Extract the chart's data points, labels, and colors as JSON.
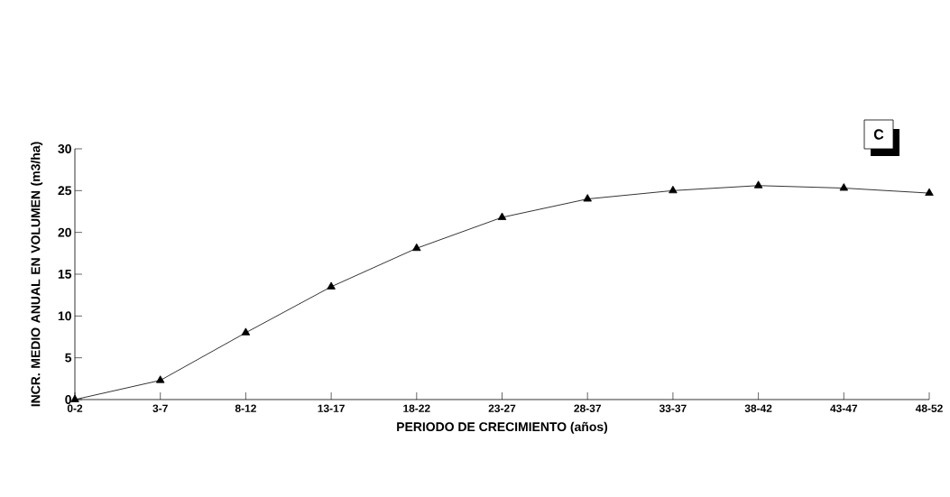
{
  "chart_data": {
    "type": "line",
    "xlabel": "PERIODO DE CRECIMIENTO (años)",
    "ylabel": "INCR. MEDIO ANUAL EN VOLUMEN (m3/ha)",
    "categories": [
      "0-2",
      "3-7",
      "8-12",
      "13-17",
      "18-22",
      "23-27",
      "28-37",
      "33-37",
      "38-42",
      "43-47",
      "48-52"
    ],
    "values": [
      0,
      2.3,
      8,
      13.5,
      18.1,
      21.8,
      24,
      25,
      25.6,
      25.3,
      24.7
    ],
    "color": "#000000",
    "marker": "triangle",
    "line_style": "solid",
    "ylim": [
      0,
      30
    ],
    "yticks": [
      0,
      5,
      10,
      15,
      20,
      25,
      30
    ],
    "annotations": [
      "C"
    ]
  }
}
